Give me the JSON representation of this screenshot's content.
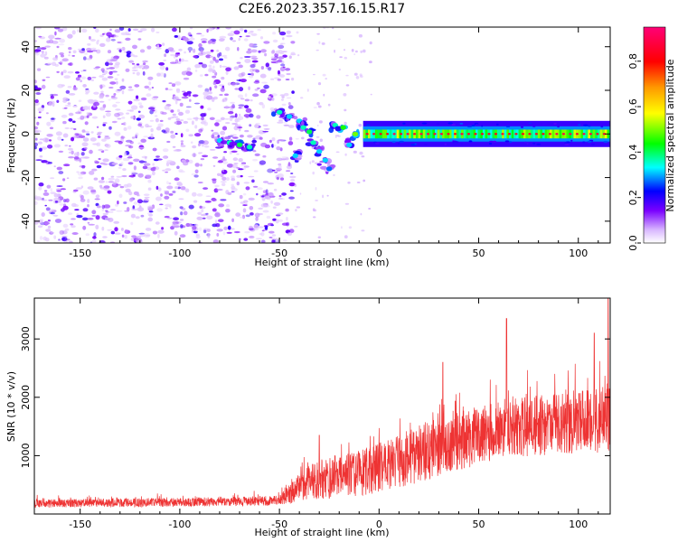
{
  "figure": {
    "title": "C2E6.2023.357.16.15.R17"
  },
  "chart_data": [
    {
      "type": "heatmap",
      "name": "spectrogram",
      "xlabel": "Height of straight line (km)",
      "ylabel": "Frequency (Hz)",
      "xlim": [
        -173,
        116
      ],
      "ylim": [
        -50,
        49
      ],
      "xticks": [
        -150,
        -100,
        -50,
        0,
        50,
        100
      ],
      "yticks": [
        -40,
        -20,
        0,
        20,
        40
      ],
      "xtick_labels": [
        "-150",
        "-100",
        "-50",
        "0",
        "50",
        "100"
      ],
      "ytick_labels": [
        "-40",
        "-20",
        "0",
        "20",
        "40"
      ],
      "colorbar": {
        "label": "Normalized spectral amplitude",
        "range": [
          0,
          0.95
        ],
        "ticks": [
          0.0,
          0.2,
          0.4,
          0.6,
          0.8
        ],
        "tick_labels": [
          "0.0",
          "0.2",
          "0.4",
          "0.6",
          "0.8"
        ]
      },
      "noise_region_x": [
        -173,
        -43
      ],
      "signal_band_hz": [
        -2.5,
        2.5
      ],
      "signal_start_x": -8,
      "drift_points": [
        {
          "x": -80,
          "y": -3,
          "v": 0.35
        },
        {
          "x": -75,
          "y": -4,
          "v": 0.4
        },
        {
          "x": -70,
          "y": -5,
          "v": 0.45
        },
        {
          "x": -65,
          "y": -6,
          "v": 0.4
        },
        {
          "x": -50,
          "y": 10,
          "v": 0.4
        },
        {
          "x": -45,
          "y": 8,
          "v": 0.35
        },
        {
          "x": -40,
          "y": 6,
          "v": 0.35
        },
        {
          "x": -38,
          "y": 3,
          "v": 0.4
        },
        {
          "x": -35,
          "y": 1,
          "v": 0.45
        },
        {
          "x": -33,
          "y": -4,
          "v": 0.4
        },
        {
          "x": -30,
          "y": -8,
          "v": 0.35
        },
        {
          "x": -27,
          "y": -12,
          "v": 0.35
        },
        {
          "x": -25,
          "y": -16,
          "v": 0.3
        },
        {
          "x": -42,
          "y": -10,
          "v": 0.35
        },
        {
          "x": -22,
          "y": 4,
          "v": 0.4
        },
        {
          "x": -18,
          "y": 3,
          "v": 0.5
        },
        {
          "x": -15,
          "y": -5,
          "v": 0.35
        },
        {
          "x": -12,
          "y": 0,
          "v": 0.55
        }
      ]
    },
    {
      "type": "line",
      "name": "snr",
      "xlabel": "Height of straight line (km)",
      "ylabel": "SNR (10 * v/v)",
      "xlim": [
        -173,
        116
      ],
      "ylim": [
        0,
        3700
      ],
      "xticks": [
        -150,
        -100,
        -50,
        0,
        50,
        100
      ],
      "yticks": [
        1000,
        2000,
        3000
      ],
      "xtick_labels": [
        "-150",
        "-100",
        "-50",
        "0",
        "50",
        "100"
      ],
      "ytick_labels": [
        "1000",
        "2000",
        "3000"
      ],
      "series": [
        {
          "name": "SNR",
          "color": "#ee3333",
          "envelope": [
            {
              "x": -173,
              "base": 180,
              "amp": 140
            },
            {
              "x": -100,
              "base": 200,
              "amp": 150
            },
            {
              "x": -50,
              "base": 230,
              "amp": 170
            },
            {
              "x": -40,
              "base": 450,
              "amp": 500
            },
            {
              "x": -30,
              "base": 600,
              "amp": 700
            },
            {
              "x": -10,
              "base": 700,
              "amp": 800
            },
            {
              "x": 10,
              "base": 900,
              "amp": 900
            },
            {
              "x": 30,
              "base": 1150,
              "amp": 1050
            },
            {
              "x": 60,
              "base": 1450,
              "amp": 1000
            },
            {
              "x": 90,
              "base": 1550,
              "amp": 1050
            },
            {
              "x": 116,
              "base": 1650,
              "amp": 1200
            }
          ],
          "peaks": [
            {
              "x": -30,
              "y": 1350
            },
            {
              "x": 32,
              "y": 2600
            },
            {
              "x": 64,
              "y": 3350
            },
            {
              "x": 108,
              "y": 3100
            },
            {
              "x": 115,
              "y": 3700
            }
          ]
        }
      ]
    }
  ]
}
